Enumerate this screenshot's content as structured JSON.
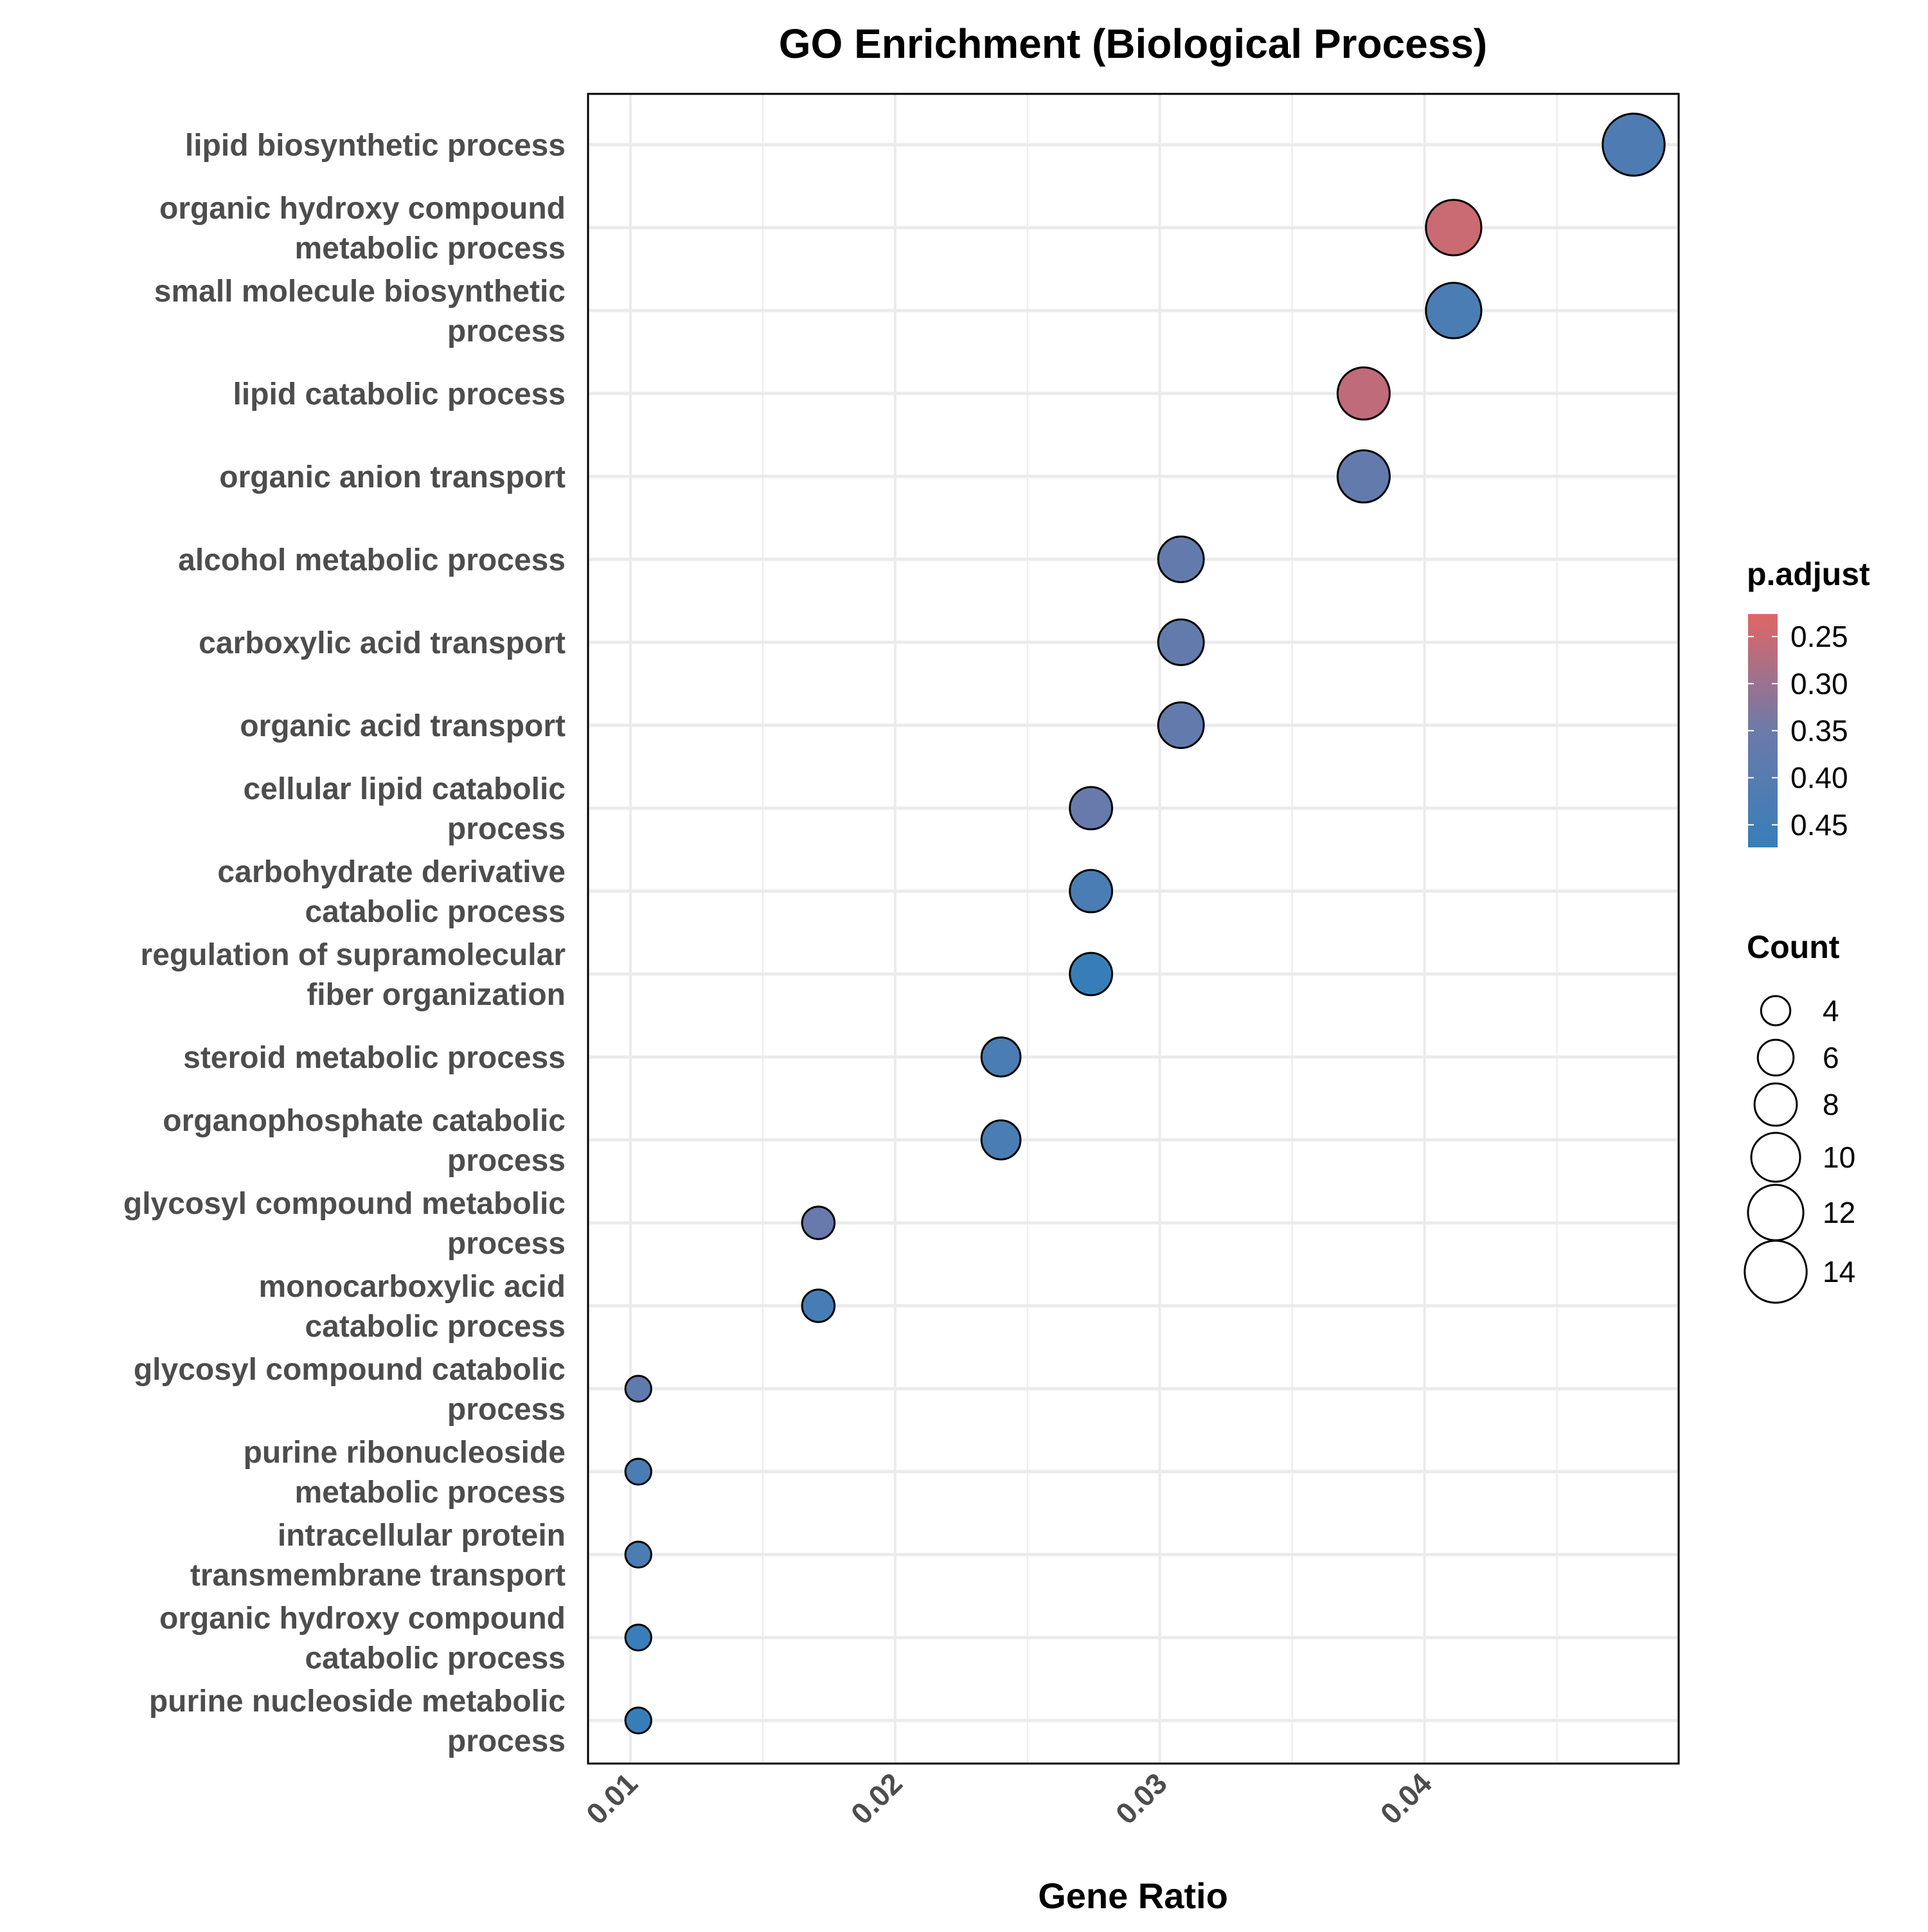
{
  "chart_data": {
    "type": "scatter",
    "title": "GO Enrichment (Biological Process)",
    "xlabel": "Gene Ratio",
    "ylabel": "",
    "xlim": [
      0.0084,
      0.0496
    ],
    "xticks": [
      "0.01",
      "0.02",
      "0.03",
      "0.04"
    ],
    "grid": true,
    "categories": [
      "lipid biosynthetic process",
      "organic hydroxy compound\nmetabolic process",
      "small molecule biosynthetic\nprocess",
      "lipid catabolic process",
      "organic anion transport",
      "alcohol metabolic process",
      "carboxylic acid transport",
      "organic acid transport",
      "cellular lipid catabolic\nprocess",
      "carbohydrate derivative\ncatabolic process",
      "regulation of supramolecular\nfiber organization",
      "steroid metabolic process",
      "organophosphate catabolic\nprocess",
      "glycosyl compound metabolic\nprocess",
      "monocarboxylic acid\ncatabolic process",
      "glycosyl compound catabolic\nprocess",
      "purine ribonucleoside\nmetabolic process",
      "intracellular protein\ntransmembrane transport",
      "organic hydroxy compound\ncatabolic process",
      "purine nucleoside metabolic\nprocess"
    ],
    "points": [
      {
        "x": 0.0479,
        "count": 14,
        "p_adjust": 0.42
      },
      {
        "x": 0.0411,
        "count": 12,
        "p_adjust": 0.25
      },
      {
        "x": 0.0411,
        "count": 12,
        "p_adjust": 0.43
      },
      {
        "x": 0.0377,
        "count": 11,
        "p_adjust": 0.26
      },
      {
        "x": 0.0377,
        "count": 11,
        "p_adjust": 0.37
      },
      {
        "x": 0.0308,
        "count": 9,
        "p_adjust": 0.37
      },
      {
        "x": 0.0308,
        "count": 9,
        "p_adjust": 0.37
      },
      {
        "x": 0.0308,
        "count": 9,
        "p_adjust": 0.37
      },
      {
        "x": 0.0274,
        "count": 8,
        "p_adjust": 0.36
      },
      {
        "x": 0.0274,
        "count": 8,
        "p_adjust": 0.43
      },
      {
        "x": 0.0274,
        "count": 8,
        "p_adjust": 0.48
      },
      {
        "x": 0.024,
        "count": 7,
        "p_adjust": 0.43
      },
      {
        "x": 0.024,
        "count": 7,
        "p_adjust": 0.43
      },
      {
        "x": 0.0171,
        "count": 5,
        "p_adjust": 0.36
      },
      {
        "x": 0.0171,
        "count": 5,
        "p_adjust": 0.44
      },
      {
        "x": 0.0103,
        "count": 3,
        "p_adjust": 0.38
      },
      {
        "x": 0.0103,
        "count": 3,
        "p_adjust": 0.43
      },
      {
        "x": 0.0103,
        "count": 3,
        "p_adjust": 0.43
      },
      {
        "x": 0.0103,
        "count": 3,
        "p_adjust": 0.47
      },
      {
        "x": 0.0103,
        "count": 3,
        "p_adjust": 0.48
      }
    ],
    "color_legend": {
      "title": "p.adjust",
      "ticks": [
        "0.25",
        "0.30",
        "0.35",
        "0.40",
        "0.45"
      ],
      "range": [
        0.226,
        0.474
      ],
      "low_color": "#E06666",
      "mid_color": "#6C7AAA",
      "high_color": "#377EB8"
    },
    "size_legend": {
      "title": "Count",
      "values": [
        "4",
        "6",
        "8",
        "10",
        "12",
        "14"
      ]
    },
    "colors": {
      "grid": "#ebebeb",
      "panel_border": "#000000",
      "point_stroke": "#000000"
    }
  }
}
